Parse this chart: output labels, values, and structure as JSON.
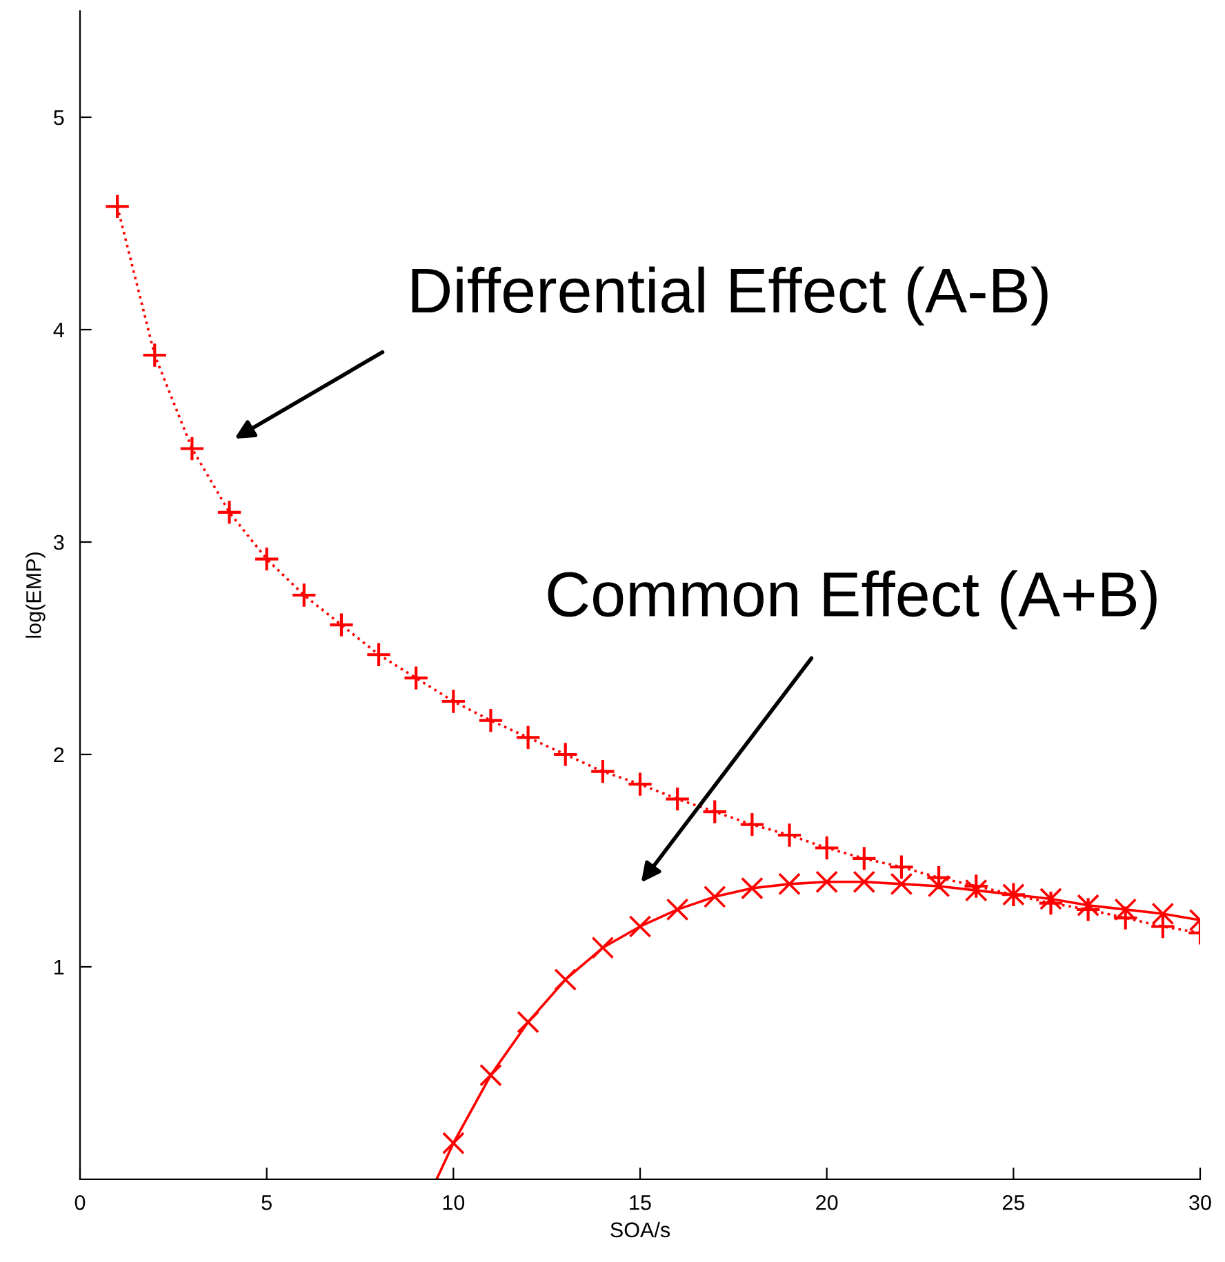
{
  "chart_data": {
    "type": "line",
    "xlabel": "SOA/s",
    "ylabel": "log(EMP)",
    "xlim": [
      0,
      30
    ],
    "xticks": [
      0,
      5,
      10,
      15,
      20,
      25,
      30
    ],
    "ylim": [
      0,
      5.5
    ],
    "yticks": [
      1,
      2,
      3,
      4,
      5
    ],
    "grid": false,
    "legend": false,
    "series": [
      {
        "marker": "plus",
        "line_style": "dotted",
        "color": "#ff0000",
        "x": [
          1,
          2,
          3,
          4,
          5,
          6,
          7,
          8,
          9,
          10,
          11,
          12,
          13,
          14,
          15,
          16,
          17,
          18,
          19,
          20,
          21,
          22,
          23,
          24,
          25,
          26,
          27,
          28,
          29,
          30
        ],
        "values": [
          4.58,
          3.88,
          3.44,
          3.14,
          2.92,
          2.75,
          2.61,
          2.47,
          2.36,
          2.25,
          2.16,
          2.08,
          2.0,
          1.92,
          1.86,
          1.79,
          1.73,
          1.67,
          1.62,
          1.56,
          1.51,
          1.47,
          1.42,
          1.38,
          1.34,
          1.3,
          1.27,
          1.23,
          1.19,
          1.16
        ]
      },
      {
        "type": "scatter",
        "marker": "cross",
        "color": "#ff0000",
        "x": [
          10,
          11,
          12,
          13,
          14,
          15,
          16,
          17,
          18,
          19,
          20,
          21,
          22,
          23,
          24,
          25,
          26,
          27,
          28,
          29,
          30
        ],
        "values": [
          0.17,
          0.49,
          0.74,
          0.94,
          1.09,
          1.19,
          1.27,
          1.33,
          1.37,
          1.39,
          1.4,
          1.4,
          1.39,
          1.38,
          1.36,
          1.34,
          1.32,
          1.29,
          1.27,
          1.25,
          1.22
        ]
      },
      {
        "marker": "none",
        "line_style": "solid",
        "color": "#ff0000",
        "x": [
          9.55,
          10,
          11,
          12,
          13,
          14,
          15,
          16,
          17,
          18,
          19,
          20,
          21,
          22,
          23,
          24,
          25,
          26,
          27,
          28,
          29,
          30
        ],
        "values": [
          0,
          0.17,
          0.49,
          0.74,
          0.94,
          1.09,
          1.19,
          1.27,
          1.33,
          1.37,
          1.39,
          1.4,
          1.4,
          1.39,
          1.38,
          1.36,
          1.34,
          1.32,
          1.29,
          1.27,
          1.25,
          1.22
        ]
      }
    ],
    "annotations": [
      "Differential Effect (A-B)",
      "Common Effect (A+B)"
    ]
  }
}
